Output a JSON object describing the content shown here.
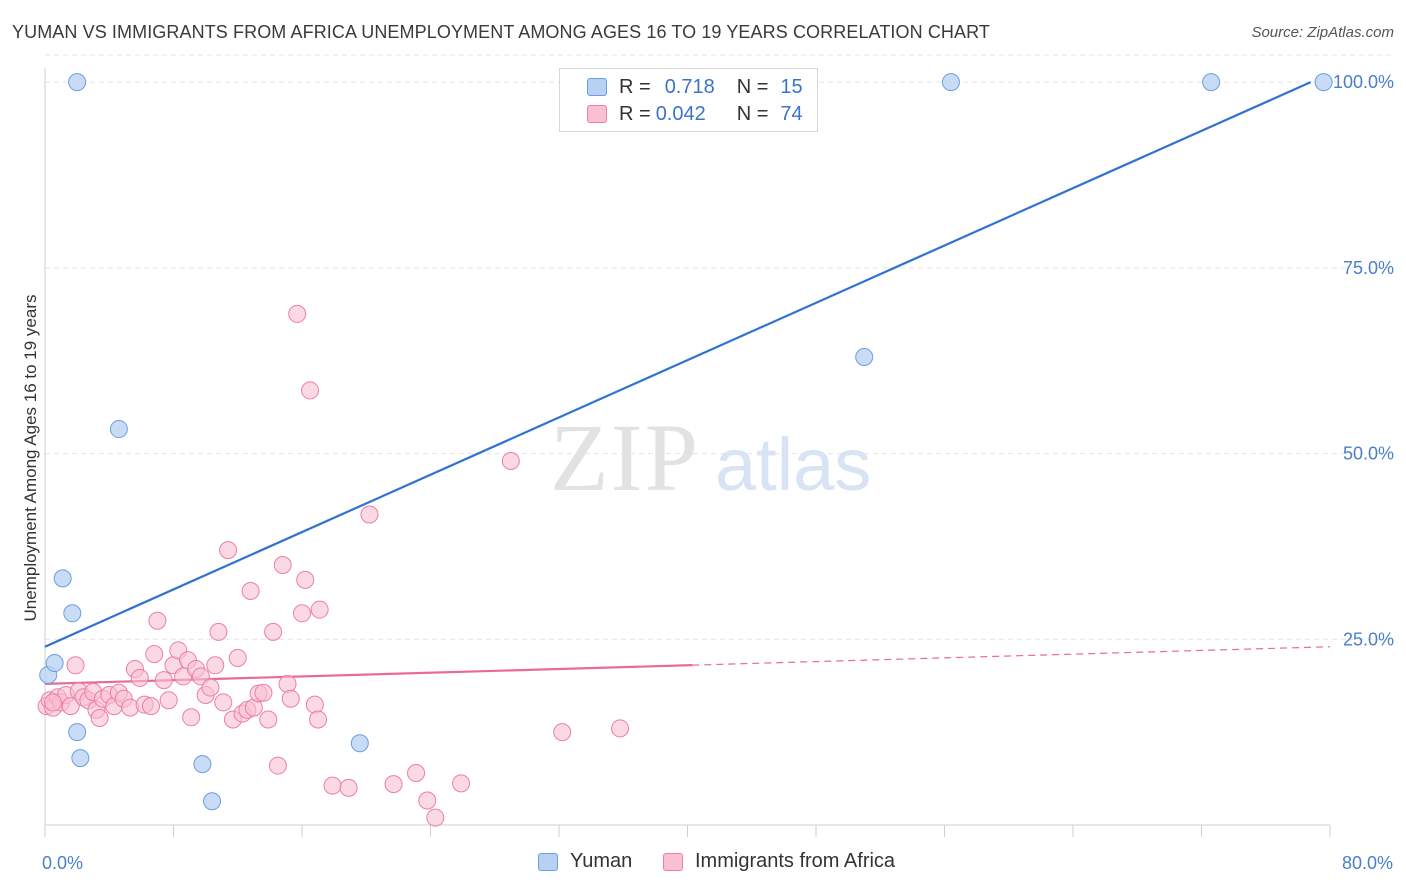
{
  "title": "YUMAN VS IMMIGRANTS FROM AFRICA UNEMPLOYMENT AMONG AGES 16 TO 19 YEARS CORRELATION CHART",
  "source": "Source: ZipAtlas.com",
  "watermark": {
    "zip": "ZIP",
    "atlas": "atlas"
  },
  "legend": {
    "rows": [
      {
        "r_label": "R =",
        "r_value": "0.718",
        "n_label": "N =",
        "n_value": "15"
      },
      {
        "r_label": "R =",
        "r_value": "0.042",
        "n_label": "N =",
        "n_value": "74"
      }
    ]
  },
  "bottom_legend": [
    "Yuman",
    "Immigrants from Africa"
  ],
  "colors": {
    "yuman_fill": "#b6d1f2",
    "yuman_stroke": "#6c9de0",
    "yuman_line": "#2f72d0",
    "africa_fill": "#f9c0d2",
    "africa_stroke": "#ec7fa3",
    "africa_line": "#e8699a",
    "tick_text": "#4a7fc9",
    "grid": "#e4e4e4"
  },
  "chart_data": {
    "type": "scatter",
    "title": "YUMAN VS IMMIGRANTS FROM AFRICA UNEMPLOYMENT AMONG AGES 16 TO 19 YEARS CORRELATION CHART",
    "xlabel": "",
    "ylabel": "Unemployment Among Ages 16 to 19 years",
    "xlim": [
      0,
      80
    ],
    "ylim": [
      0,
      105
    ],
    "x_tick_labels": [
      "0.0%",
      "80.0%"
    ],
    "y_tick_labels": [
      "25.0%",
      "50.0%",
      "75.0%",
      "100.0%"
    ],
    "y_ticks": [
      25,
      50,
      75,
      100
    ],
    "grid": true,
    "series": [
      {
        "name": "Yuman",
        "points": [
          [
            0.2,
            20.2
          ],
          [
            0.6,
            21.8
          ],
          [
            1.1,
            33.2
          ],
          [
            1.7,
            28.5
          ],
          [
            2.0,
            12.5
          ],
          [
            2.2,
            9.0
          ],
          [
            2.0,
            100.0
          ],
          [
            4.6,
            53.3
          ],
          [
            9.8,
            8.2
          ],
          [
            10.4,
            3.2
          ],
          [
            19.6,
            11.0
          ],
          [
            51.0,
            63.0
          ],
          [
            56.4,
            100.0
          ],
          [
            72.6,
            100.0
          ],
          [
            79.6,
            100.0
          ]
        ],
        "trend": {
          "x": [
            0,
            78.8
          ],
          "y": [
            24.0,
            100.0
          ],
          "solid_to": 78.8
        }
      },
      {
        "name": "Immigrants from Africa",
        "points": [
          [
            0.1,
            16.0
          ],
          [
            0.3,
            16.8
          ],
          [
            0.5,
            15.8
          ],
          [
            0.8,
            17.2
          ],
          [
            1.0,
            16.5
          ],
          [
            1.3,
            17.5
          ],
          [
            1.6,
            16.0
          ],
          [
            1.9,
            21.5
          ],
          [
            2.1,
            18.0
          ],
          [
            2.4,
            17.2
          ],
          [
            2.7,
            16.8
          ],
          [
            3.0,
            17.9
          ],
          [
            3.2,
            15.5
          ],
          [
            3.4,
            14.4
          ],
          [
            3.6,
            17.0
          ],
          [
            4.0,
            17.5
          ],
          [
            4.3,
            16.0
          ],
          [
            4.6,
            17.8
          ],
          [
            4.9,
            17.0
          ],
          [
            5.3,
            15.8
          ],
          [
            5.6,
            21.0
          ],
          [
            5.9,
            19.8
          ],
          [
            6.2,
            16.2
          ],
          [
            6.6,
            16.0
          ],
          [
            6.8,
            23.0
          ],
          [
            7.0,
            27.5
          ],
          [
            7.4,
            19.5
          ],
          [
            7.7,
            16.8
          ],
          [
            8.0,
            21.5
          ],
          [
            8.3,
            23.5
          ],
          [
            8.6,
            20.0
          ],
          [
            8.9,
            22.2
          ],
          [
            9.1,
            14.5
          ],
          [
            9.4,
            21.0
          ],
          [
            9.7,
            20.0
          ],
          [
            10.0,
            17.5
          ],
          [
            10.3,
            18.5
          ],
          [
            10.6,
            21.5
          ],
          [
            10.8,
            26.0
          ],
          [
            11.1,
            16.5
          ],
          [
            11.4,
            37.0
          ],
          [
            11.7,
            14.2
          ],
          [
            12.0,
            22.5
          ],
          [
            12.3,
            15.0
          ],
          [
            12.6,
            15.5
          ],
          [
            12.8,
            31.5
          ],
          [
            13.0,
            15.8
          ],
          [
            13.3,
            17.7
          ],
          [
            13.6,
            17.8
          ],
          [
            13.9,
            14.2
          ],
          [
            14.2,
            26.0
          ],
          [
            14.5,
            8.0
          ],
          [
            14.8,
            35.0
          ],
          [
            15.1,
            19.0
          ],
          [
            15.3,
            17.0
          ],
          [
            15.7,
            68.8
          ],
          [
            16.0,
            28.5
          ],
          [
            16.2,
            33.0
          ],
          [
            16.5,
            58.5
          ],
          [
            16.8,
            16.2
          ],
          [
            17.0,
            14.2
          ],
          [
            17.1,
            29.0
          ],
          [
            17.9,
            5.3
          ],
          [
            18.9,
            5.0
          ],
          [
            20.2,
            41.8
          ],
          [
            21.7,
            5.5
          ],
          [
            23.1,
            7.0
          ],
          [
            23.8,
            3.3
          ],
          [
            24.3,
            1.0
          ],
          [
            25.9,
            5.6
          ],
          [
            29.0,
            49.0
          ],
          [
            32.2,
            12.5
          ],
          [
            35.8,
            13.0
          ],
          [
            0.5,
            16.5
          ]
        ],
        "trend": {
          "x": [
            0,
            80
          ],
          "y": [
            19.0,
            24.0
          ],
          "solid_to": 40.3
        }
      }
    ]
  }
}
